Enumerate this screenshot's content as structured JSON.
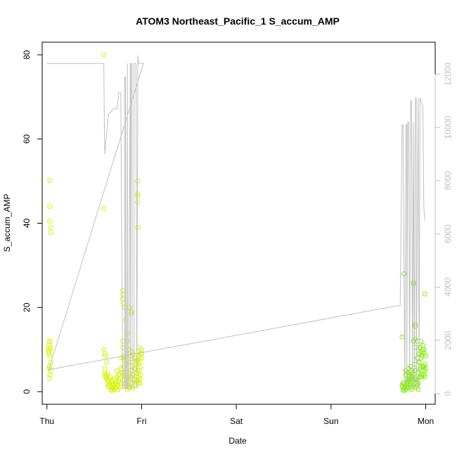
{
  "chart_data": {
    "type": "scatter",
    "title": "ATOM3 Northeast_Pacific_1 S_accum_AMP",
    "xlabel": "Date",
    "ylabel": "S_accum_AMP",
    "xlim": [
      -0.05,
      4.1
    ],
    "ylim": [
      -3,
      83
    ],
    "y2lim": [
      -400,
      13200
    ],
    "x_ticks": [
      {
        "value": 0,
        "label": "Thu"
      },
      {
        "value": 1,
        "label": "Fri"
      },
      {
        "value": 2,
        "label": "Sat"
      },
      {
        "value": 3,
        "label": "Sun"
      },
      {
        "value": 4,
        "label": "Mon"
      }
    ],
    "y_ticks": [
      0,
      20,
      40,
      60,
      80
    ],
    "y2_ticks": [
      0,
      2000,
      4000,
      6000,
      8000,
      10000,
      12000
    ],
    "grid": false,
    "legend": "none",
    "colors": {
      "points_yellow": "#d4f400",
      "points_green": "#80f000",
      "line_secondary": "#c0c0c0",
      "axis": "#000000",
      "axis_right": "#c0c0c0"
    },
    "series": [
      {
        "kind": "points",
        "axis": "left",
        "x": [
          0.02,
          0.02,
          0.02,
          0.02,
          0.02,
          0.02,
          0.03,
          0.03,
          0.03,
          0.03,
          0.03,
          0.03,
          0.03,
          0.03,
          0.04,
          0.04,
          0.04,
          0.04,
          0.04,
          0.04,
          0.6,
          0.6,
          0.61,
          0.61,
          0.61,
          0.62,
          0.62,
          0.62,
          0.63,
          0.63,
          0.63,
          0.64,
          0.64,
          0.65,
          0.65,
          0.66,
          0.66,
          0.67,
          0.67,
          0.68,
          0.68,
          0.69,
          0.69,
          0.7,
          0.7,
          0.71,
          0.71,
          0.72,
          0.72,
          0.73,
          0.73,
          0.74,
          0.74,
          0.75,
          0.75,
          0.76,
          0.76,
          0.77,
          0.77,
          0.78,
          0.78,
          0.79,
          0.79,
          0.8,
          0.8,
          0.8,
          0.8,
          0.81,
          0.81,
          0.81,
          0.81,
          0.82,
          0.82,
          0.82,
          0.83,
          0.83,
          0.83,
          0.84,
          0.84,
          0.84,
          0.85,
          0.85,
          0.85,
          0.86,
          0.86,
          0.86,
          0.87,
          0.87,
          0.87,
          0.88,
          0.88,
          0.88,
          0.89,
          0.89,
          0.89,
          0.9,
          0.9,
          0.9,
          0.91,
          0.91,
          0.92,
          0.92,
          0.93,
          0.93,
          0.94,
          0.94,
          0.95,
          0.95,
          0.95,
          0.95,
          0.96,
          0.96,
          0.96,
          0.96,
          0.96,
          0.96,
          0.97,
          0.97,
          0.97,
          0.97,
          0.98,
          0.98,
          0.98,
          0.98,
          0.99,
          0.99,
          0.99,
          1.0,
          1.0,
          1.0,
          1.0,
          0.6,
          0.8,
          0.81,
          0.8,
          0.82,
          0.85,
          0.86,
          0.88,
          0.91,
          0.93,
          0.96,
          0.96,
          0.97,
          0.97,
          0.96,
          0.9,
          0.91
        ],
        "y": [
          11.9,
          11.0,
          10.0,
          9.5,
          9.0,
          5.5,
          10.5,
          8.5,
          6.0,
          4.0,
          3.2,
          44.0,
          50.2,
          40.5,
          39.0,
          37.8,
          12.0,
          10.2,
          5.0,
          7.0,
          43.5,
          10.0,
          9.0,
          5.5,
          4.5,
          4.0,
          3.5,
          8.5,
          3.0,
          7.0,
          3.8,
          2.5,
          4.2,
          1.5,
          1.0,
          3.0,
          2.0,
          1.5,
          3.5,
          0.5,
          2.5,
          1.0,
          0.2,
          0.8,
          2.0,
          0.5,
          1.5,
          2.5,
          3.0,
          1.0,
          2.0,
          3.5,
          5.0,
          0.5,
          1.5,
          2.5,
          4.0,
          1.0,
          3.0,
          5.5,
          2.0,
          8.0,
          4.5,
          10.5,
          24.0,
          23.0,
          22.0,
          21.0,
          8.5,
          6.0,
          4.0,
          20.0,
          7.5,
          5.5,
          3.5,
          2.0,
          17.0,
          9.0,
          6.5,
          3.0,
          1.5,
          14.0,
          12.0,
          7.0,
          4.5,
          2.5,
          20.0,
          10.0,
          1.0,
          3.0,
          8.5,
          5.0,
          19.0,
          3.5,
          18.5,
          2.0,
          6.0,
          7.0,
          4.0,
          9.0,
          3.0,
          5.5,
          2.0,
          8.0,
          6.5,
          1.5,
          4.5,
          7.5,
          2.5,
          3.5,
          5.0,
          47.0,
          46.5,
          45.0,
          39.0,
          50.0,
          8.5,
          9.5,
          10.5,
          7.0,
          5.0,
          3.0,
          2.0,
          8.0,
          6.0,
          4.0,
          9.0,
          10.0,
          8.0,
          9.0,
          10.0,
          80.0,
          12.0,
          8.0,
          4.5,
          2.0,
          0.5,
          1.0,
          3.0,
          4.0,
          5.5,
          6.5,
          2.5,
          2.0,
          3.5,
          7.5,
          9.5,
          0.8
        ],
        "color": "points_yellow"
      },
      {
        "kind": "points",
        "axis": "left",
        "x": [
          3.75,
          3.75,
          3.76,
          3.76,
          3.77,
          3.77,
          3.78,
          3.78,
          3.79,
          3.79,
          3.8,
          3.8,
          3.81,
          3.81,
          3.82,
          3.82,
          3.82,
          3.83,
          3.83,
          3.83,
          3.84,
          3.84,
          3.84,
          3.85,
          3.85,
          3.85,
          3.86,
          3.86,
          3.86,
          3.87,
          3.87,
          3.87,
          3.88,
          3.88,
          3.88,
          3.88,
          3.89,
          3.89,
          3.89,
          3.89,
          3.9,
          3.9,
          3.9,
          3.91,
          3.91,
          3.91,
          3.92,
          3.92,
          3.92,
          3.93,
          3.93,
          3.94,
          3.94,
          3.94,
          3.95,
          3.95,
          3.95,
          3.96,
          3.96,
          3.96,
          3.97,
          3.97,
          3.97,
          3.98,
          3.98,
          3.98,
          3.99,
          3.99,
          3.99,
          4.0,
          4.0,
          3.77,
          3.76,
          3.8,
          3.79,
          3.82,
          3.81,
          3.84,
          3.86,
          3.89,
          3.93,
          3.96,
          3.97,
          3.98,
          3.99,
          3.78,
          3.85,
          3.87,
          3.9,
          3.91
        ],
        "y": [
          13.0,
          1.5,
          0.5,
          1.0,
          0.2,
          2.0,
          1.5,
          1.0,
          5.0,
          0.5,
          3.0,
          2.0,
          4.5,
          1.0,
          5.5,
          3.5,
          2.5,
          4.0,
          3.0,
          1.5,
          6.0,
          4.5,
          2.0,
          3.0,
          5.0,
          1.0,
          4.0,
          2.5,
          3.5,
          26.0,
          25.5,
          12.0,
          3.5,
          5.0,
          2.0,
          6.5,
          12.5,
          16.0,
          15.5,
          5.0,
          10.5,
          3.0,
          1.0,
          12.0,
          8.0,
          1.5,
          4.5,
          0.5,
          2.0,
          7.0,
          9.0,
          10.5,
          3.5,
          5.5,
          12.0,
          8.0,
          6.0,
          9.5,
          4.0,
          3.5,
          11.0,
          5.0,
          10.0,
          9.0,
          6.0,
          4.0,
          6.5,
          3.5,
          23.2,
          5.5,
          8.5,
          28.0,
          2.0,
          1.0,
          4.0,
          3.0,
          2.5,
          2.0,
          4.0,
          3.0,
          7.0,
          8.5,
          6.0,
          10.0,
          5.0,
          1.0,
          0.5,
          1.5,
          2.0,
          2.5
        ],
        "color": "points_green"
      },
      {
        "kind": "line",
        "axis": "right",
        "x": [
          0.0,
          0.01,
          0.02,
          0.06,
          0.6,
          0.61,
          0.65,
          0.68,
          0.7,
          0.72,
          0.74,
          0.76,
          0.78,
          0.8,
          0.82,
          0.82,
          0.83,
          0.83,
          0.84,
          0.85,
          0.85,
          0.86,
          0.88,
          0.88,
          0.89,
          0.9,
          0.9,
          0.92,
          0.92,
          0.94,
          0.95,
          0.95,
          0.96,
          0.96,
          0.97,
          0.98,
          0.99,
          1.0,
          0.99,
          1.0,
          1.02,
          0.02,
          3.7,
          3.72,
          3.73,
          3.75,
          3.76,
          3.78,
          3.79,
          3.8,
          3.8,
          3.81,
          3.82,
          3.83,
          3.84,
          3.85,
          3.86,
          3.87,
          3.88,
          3.89,
          3.9,
          3.9,
          3.92,
          3.93,
          3.94,
          3.95,
          3.96,
          3.97,
          3.98,
          3.99
        ],
        "y2": [
          12400,
          12400,
          12400,
          12400,
          12400,
          9000,
          10500,
          10600,
          10700,
          10700,
          10700,
          11300,
          11300,
          200,
          200,
          11900,
          11900,
          200,
          200,
          12400,
          200,
          200,
          12400,
          200,
          12400,
          12400,
          200,
          200,
          12400,
          12400,
          200,
          200,
          12400,
          12700,
          12400,
          12400,
          12400,
          12400,
          12400,
          12400,
          12400,
          900,
          3300,
          3300,
          3300,
          10100,
          10100,
          200,
          10100,
          10100,
          300,
          10200,
          10200,
          200,
          11000,
          11000,
          200,
          10200,
          200,
          11100,
          11100,
          200,
          11100,
          200,
          11100,
          11000,
          10900,
          10800,
          7000,
          6500
        ],
        "color": "line_secondary"
      }
    ]
  }
}
